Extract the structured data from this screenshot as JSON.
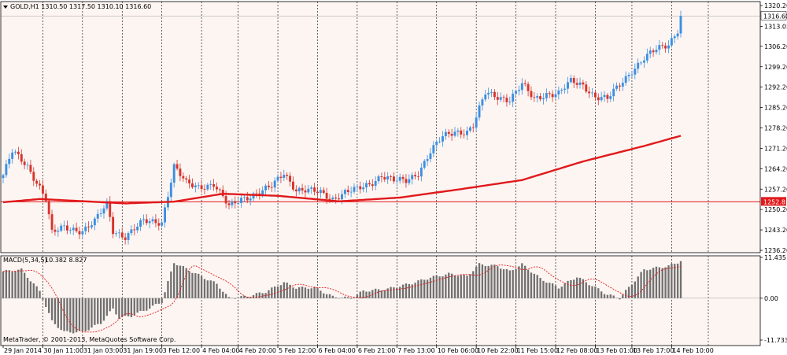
{
  "window": {
    "symbol_header": "GOLD,H1 1310.50 1317.50 1310.10 1316.60",
    "copyright": "MetaTrader, © 2001-2013, MetaQuotes Software Corp."
  },
  "colors": {
    "background": "#fdf5f2",
    "bull": "#3c8fe0",
    "bear": "#d6342b",
    "ma": "#e1191b",
    "grid": "#000000",
    "histogram": "#707070",
    "signal": "#e1191b",
    "badge": "#e1191b"
  },
  "chart_data": [
    {
      "type": "candlestick",
      "title": "GOLD,H1",
      "ohlc_header": "1310.50 1317.50 1310.10 1316.60",
      "y_ticks": [
        "1320.20",
        "1313.05",
        "1306.20",
        "1299.20",
        "1292.20",
        "1285.20",
        "1278.20",
        "1271.20",
        "1264.20",
        "1257.20",
        "1250.20",
        "1243.20",
        "1236.20"
      ],
      "ylim": [
        1236.2,
        1320.2
      ],
      "x_tick_labels": [
        "29 Jan 2014",
        "30 Jan 11:00",
        "31 Jan 03:00",
        "31 Jan 19:00",
        "3 Feb 12:00",
        "4 Feb 04:00",
        "4 Feb 20:00",
        "5 Feb 12:00",
        "6 Feb 04:00",
        "6 Feb 21:00",
        "7 Feb 13:00",
        "10 Feb 06:00",
        "10 Feb 22:00",
        "11 Feb 15:00",
        "12 Feb 08:00",
        "13 Feb 01:00",
        "13 Feb 17:00",
        "14 Feb 10:00"
      ],
      "price_levels": {
        "current": "1316.60",
        "marked": "1252.85"
      },
      "anchors": [
        [
          0,
          1262
        ],
        [
          3,
          1270
        ],
        [
          8,
          1265
        ],
        [
          12,
          1258
        ],
        [
          14,
          1254
        ],
        [
          16,
          1242
        ],
        [
          20,
          1244
        ],
        [
          26,
          1243
        ],
        [
          30,
          1246
        ],
        [
          34,
          1252
        ],
        [
          36,
          1243
        ],
        [
          40,
          1241
        ],
        [
          46,
          1246
        ],
        [
          52,
          1246
        ],
        [
          56,
          1265
        ],
        [
          60,
          1259
        ],
        [
          64,
          1258
        ],
        [
          69,
          1259
        ],
        [
          74,
          1251
        ],
        [
          78,
          1254
        ],
        [
          84,
          1256
        ],
        [
          88,
          1258
        ],
        [
          92,
          1263
        ],
        [
          96,
          1257
        ],
        [
          104,
          1256
        ],
        [
          108,
          1254
        ],
        [
          112,
          1256
        ],
        [
          116,
          1257
        ],
        [
          120,
          1259
        ],
        [
          124,
          1262
        ],
        [
          128,
          1260
        ],
        [
          132,
          1260
        ],
        [
          136,
          1263
        ],
        [
          140,
          1270
        ],
        [
          144,
          1275
        ],
        [
          148,
          1277
        ],
        [
          152,
          1277
        ],
        [
          154,
          1279
        ],
        [
          158,
          1290
        ],
        [
          162,
          1289
        ],
        [
          166,
          1288
        ],
        [
          170,
          1293
        ],
        [
          174,
          1288
        ],
        [
          178,
          1290
        ],
        [
          182,
          1290
        ],
        [
          186,
          1294
        ],
        [
          190,
          1293
        ],
        [
          194,
          1289
        ],
        [
          198,
          1288
        ],
        [
          202,
          1293
        ],
        [
          206,
          1298
        ],
        [
          210,
          1302
        ],
        [
          214,
          1305
        ],
        [
          218,
          1307
        ],
        [
          221,
          1312
        ],
        [
          222,
          1317
        ]
      ],
      "candle_count": 223,
      "ma_points": [
        [
          0,
          1252.7
        ],
        [
          12,
          1253.8
        ],
        [
          40,
          1252.3
        ],
        [
          56,
          1252.9
        ],
        [
          72,
          1255.6
        ],
        [
          90,
          1254.9
        ],
        [
          110,
          1253.0
        ],
        [
          130,
          1254.3
        ],
        [
          150,
          1257.2
        ],
        [
          170,
          1260.3
        ],
        [
          190,
          1266.7
        ],
        [
          210,
          1272.0
        ],
        [
          222,
          1275.5
        ]
      ]
    },
    {
      "type": "bar",
      "title": "MACD(5,34,5)",
      "values_header": "10.382 8.827",
      "y_ticks": [
        "11.435",
        "0.00",
        "-11.733"
      ],
      "ylim": [
        -11.733,
        11.435
      ],
      "anchors": [
        [
          0,
          7.5
        ],
        [
          6,
          8.0
        ],
        [
          12,
          2.0
        ],
        [
          16,
          -6.5
        ],
        [
          20,
          -9.5
        ],
        [
          26,
          -9.5
        ],
        [
          32,
          -7.0
        ],
        [
          36,
          -3.0
        ],
        [
          38,
          -5.5
        ],
        [
          42,
          -5.0
        ],
        [
          48,
          -2.8
        ],
        [
          52,
          -1.0
        ],
        [
          56,
          10.0
        ],
        [
          64,
          6.5
        ],
        [
          70,
          4.0
        ],
        [
          74,
          0.0
        ],
        [
          80,
          0.5
        ],
        [
          86,
          1.8
        ],
        [
          92,
          4.4
        ],
        [
          96,
          2.9
        ],
        [
          102,
          3.0
        ],
        [
          108,
          0.4
        ],
        [
          114,
          0.0
        ],
        [
          118,
          2.0
        ],
        [
          126,
          2.6
        ],
        [
          134,
          4.2
        ],
        [
          140,
          5.8
        ],
        [
          146,
          6.8
        ],
        [
          152,
          6.2
        ],
        [
          156,
          9.5
        ],
        [
          162,
          9.0
        ],
        [
          166,
          7.5
        ],
        [
          170,
          9.5
        ],
        [
          176,
          5.5
        ],
        [
          182,
          3.0
        ],
        [
          188,
          6.0
        ],
        [
          194,
          3.0
        ],
        [
          198,
          1.0
        ],
        [
          202,
          0.0
        ],
        [
          210,
          8.0
        ],
        [
          218,
          9.0
        ],
        [
          222,
          10.382
        ]
      ],
      "signal_lag": 3,
      "signal_value": 8.827
    }
  ]
}
